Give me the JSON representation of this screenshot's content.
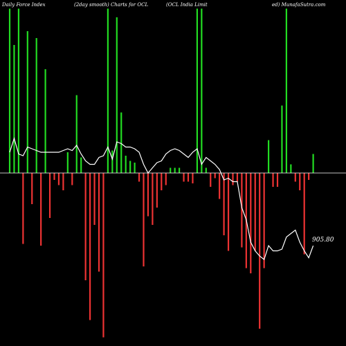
{
  "header": {
    "segments": [
      "Daily Force  Index",
      "(2day smooth) Charts for OCL",
      "(OCL  India  Limit",
      "ed) MunafaSutra.com"
    ]
  },
  "colors": {
    "background": "#000000",
    "positive_bar": "#22dd22",
    "negative_bar": "#ee3333",
    "line": "#ffffff",
    "zero_line": "#ffffff"
  },
  "chart_data": {
    "type": "bar",
    "title": "",
    "xlabel": "",
    "ylabel": "",
    "grid": false,
    "legend": "none",
    "ylim": [
      -1.0,
      1.0
    ],
    "bars": [
      0.95,
      0.74,
      0.95,
      -0.41,
      0.82,
      -0.18,
      0.78,
      -0.42,
      0.6,
      -0.26,
      -0.04,
      -0.07,
      -0.1,
      0.12,
      -0.07,
      0.45,
      0.09,
      -0.62,
      -0.85,
      -0.3,
      -0.57,
      -0.95,
      0.95,
      0.13,
      0.9,
      0.35,
      0.1,
      0.07,
      0.06,
      -0.05,
      -0.54,
      -0.25,
      -0.3,
      -0.2,
      -0.1,
      -0.07,
      0.03,
      0.03,
      0.03,
      -0.05,
      -0.05,
      -0.06,
      0.95,
      0.95,
      0.03,
      -0.08,
      -0.03,
      -0.15,
      -0.36,
      -0.45,
      -0.07,
      -0.05,
      -0.43,
      -0.55,
      -0.58,
      -0.45,
      -0.9,
      -0.55,
      0.19,
      -0.08,
      -0.08,
      0.39,
      0.95,
      0.05,
      -0.05,
      -0.1,
      -0.47,
      -0.04,
      0.11
    ],
    "series": [
      {
        "values": [
          0.12,
          0.2,
          0.11,
          0.1,
          0.15,
          0.14,
          0.13,
          0.12,
          0.12,
          0.12,
          0.12,
          0.12,
          0.13,
          0.14,
          0.13,
          0.16,
          0.11,
          0.07,
          0.05,
          0.05,
          0.09,
          0.1,
          0.15,
          0.08,
          0.18,
          0.17,
          0.15,
          0.15,
          0.14,
          0.12,
          0.05,
          0.0,
          0.03,
          0.06,
          0.07,
          0.11,
          0.13,
          0.14,
          0.13,
          0.11,
          0.09,
          0.12,
          0.14,
          0.05,
          0.09,
          0.07,
          0.05,
          0.02,
          -0.04,
          -0.03,
          -0.05,
          -0.05,
          -0.2,
          -0.27,
          -0.4,
          -0.45,
          -0.48,
          -0.5,
          -0.42,
          -0.45,
          -0.45,
          -0.44,
          -0.37,
          -0.35,
          -0.33,
          -0.4,
          -0.45,
          -0.49,
          -0.42
        ]
      }
    ],
    "last_value_label": "905.80"
  }
}
